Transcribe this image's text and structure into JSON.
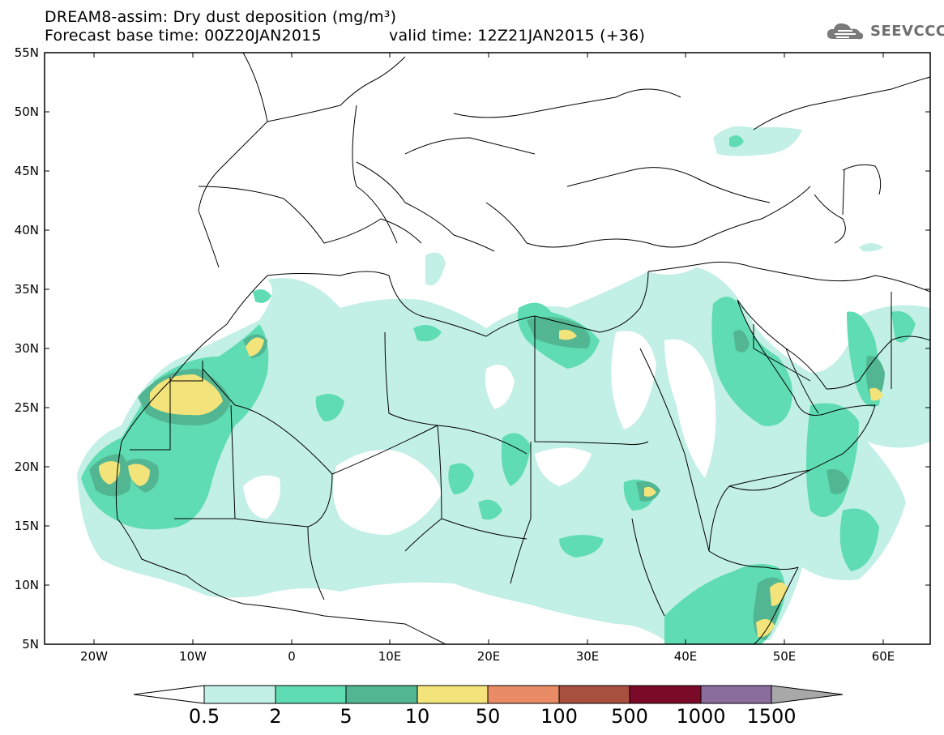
{
  "header": {
    "title": "DREAM8-assim: Dry dust deposition (mg/m³)",
    "base_time": "Forecast base time: 00Z20JAN2015",
    "valid_time": "valid time: 12Z21JAN2015 (+36)"
  },
  "logo": {
    "text": "SEEVCCC",
    "icon": "cloud-logo-icon"
  },
  "axes": {
    "lat_labels": [
      "55N",
      "50N",
      "45N",
      "40N",
      "35N",
      "30N",
      "25N",
      "20N",
      "15N",
      "10N",
      "5N"
    ],
    "lon_labels": [
      "20W",
      "10W",
      "0",
      "10E",
      "20E",
      "30E",
      "40E",
      "50E",
      "60E"
    ]
  },
  "colorbar": {
    "labels": [
      "0.5",
      "2",
      "5",
      "10",
      "50",
      "100",
      "500",
      "1000",
      "1500"
    ],
    "colors": [
      "#c2efe6",
      "#5fdcb3",
      "#52b692",
      "#f2e47a",
      "#e98c66",
      "#a94f3f",
      "#7a0a28",
      "#8a6d9c",
      "#a8a8a8"
    ]
  }
}
